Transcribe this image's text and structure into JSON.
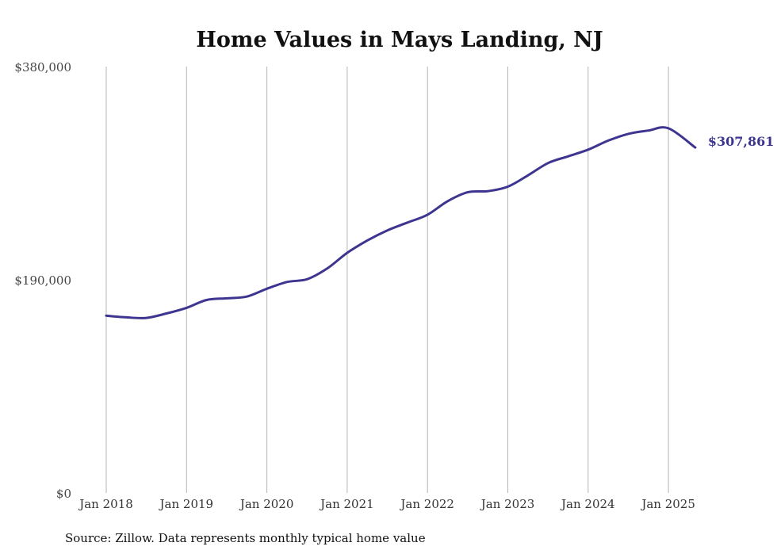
{
  "chart_data": {
    "type": "line",
    "title": "Home Values in Mays Landing, NJ",
    "xlabel": "",
    "ylabel": "",
    "ylim": [
      0,
      380000
    ],
    "y_ticks": [
      {
        "value": 0,
        "label": "$0"
      },
      {
        "value": 190000,
        "label": "$190,000"
      },
      {
        "value": 380000,
        "label": "$380,000"
      }
    ],
    "x_ticks": [
      {
        "value": "2018-01",
        "label": "Jan 2018"
      },
      {
        "value": "2019-01",
        "label": "Jan 2019"
      },
      {
        "value": "2020-01",
        "label": "Jan 2020"
      },
      {
        "value": "2021-01",
        "label": "Jan 2021"
      },
      {
        "value": "2022-01",
        "label": "Jan 2022"
      },
      {
        "value": "2023-01",
        "label": "Jan 2023"
      },
      {
        "value": "2024-01",
        "label": "Jan 2024"
      },
      {
        "value": "2025-01",
        "label": "Jan 2025"
      }
    ],
    "grid": {
      "vertical": true,
      "horizontal": false
    },
    "line_color": "#3d3590",
    "series": [
      {
        "x": [
          "2018-01",
          "2018-04",
          "2018-07",
          "2018-10",
          "2019-01",
          "2019-04",
          "2019-07",
          "2019-10",
          "2020-01",
          "2020-04",
          "2020-07",
          "2020-10",
          "2021-01",
          "2021-04",
          "2021-07",
          "2021-10",
          "2022-01",
          "2022-04",
          "2022-07",
          "2022-10",
          "2023-01",
          "2023-04",
          "2023-07",
          "2023-10",
          "2024-01",
          "2024-04",
          "2024-07",
          "2024-10",
          "2025-01",
          "2025-05"
        ],
        "values": [
          158000,
          156500,
          156000,
          160000,
          165000,
          172000,
          173500,
          175000,
          182000,
          188000,
          190500,
          200000,
          214000,
          225000,
          234000,
          241000,
          248000,
          260000,
          268000,
          269000,
          273000,
          283000,
          294000,
          300000,
          306000,
          314000,
          320000,
          323000,
          325000,
          307861
        ]
      }
    ],
    "annotations": [
      {
        "x": "2025-05",
        "label": "$307,861"
      }
    ],
    "source": "Source: Zillow. Data represents monthly typical home value"
  }
}
